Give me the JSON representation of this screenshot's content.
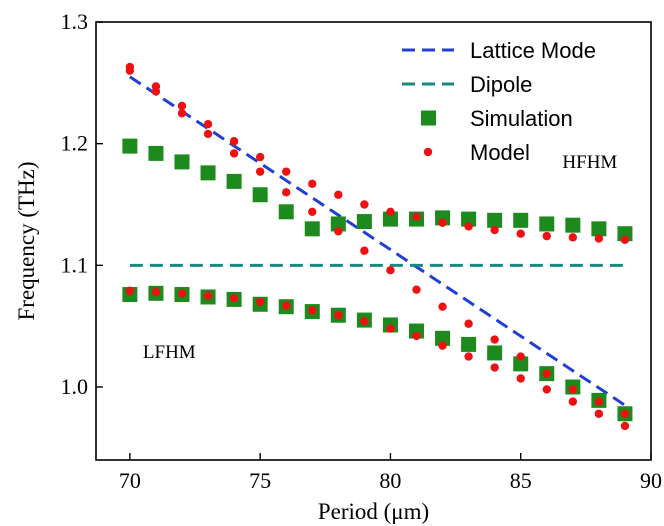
{
  "chart_data": {
    "type": "scatter",
    "xlabel": "Period (μm)",
    "ylabel": "Frequency (THz)",
    "xlim": [
      68.7,
      90
    ],
    "ylim": [
      0.94,
      1.3
    ],
    "xticks": [
      70,
      75,
      80,
      85,
      90
    ],
    "yticks": [
      1.0,
      1.1,
      1.2,
      1.3
    ],
    "xtick_labels": [
      "70",
      "75",
      "80",
      "85",
      "90"
    ],
    "ytick_labels": [
      "1.0",
      "1.1",
      "1.2",
      "1.3"
    ],
    "grid": false,
    "legend_position": "top-right",
    "series": [
      {
        "name": "Lattice Mode",
        "kind": "line",
        "style": "dashed",
        "color": "#1f3fd6",
        "x": [
          70,
          89
        ],
        "y": [
          1.255,
          0.985
        ]
      },
      {
        "name": "Dipole",
        "kind": "line",
        "style": "dashed",
        "color": "#1a8a80",
        "x": [
          70,
          89
        ],
        "y": [
          1.1,
          1.1
        ]
      },
      {
        "name": "Simulation",
        "kind": "scatter",
        "marker": "square",
        "color": "#1d8a1d",
        "x": [
          70,
          71,
          72,
          73,
          74,
          75,
          76,
          77,
          78,
          79,
          80,
          81,
          82,
          83,
          84,
          85,
          86,
          87,
          88,
          89,
          70,
          71,
          72,
          73,
          74,
          75,
          76,
          77,
          78,
          79,
          80,
          81,
          82,
          83,
          84,
          85,
          86,
          87,
          88,
          89
        ],
        "y": [
          1.198,
          1.192,
          1.185,
          1.176,
          1.169,
          1.158,
          1.144,
          1.13,
          1.134,
          1.136,
          1.138,
          1.138,
          1.139,
          1.138,
          1.137,
          1.137,
          1.134,
          1.133,
          1.13,
          1.126,
          1.076,
          1.077,
          1.076,
          1.074,
          1.072,
          1.068,
          1.066,
          1.062,
          1.059,
          1.055,
          1.051,
          1.046,
          1.04,
          1.035,
          1.028,
          1.019,
          1.011,
          1.0,
          0.989,
          0.978
        ]
      },
      {
        "name": "Model",
        "kind": "scatter",
        "marker": "circle",
        "color": "#ee1111",
        "x": [
          70,
          70,
          71,
          71,
          72,
          72,
          73,
          73,
          74,
          74,
          75,
          75,
          76,
          76,
          77,
          77,
          78,
          78,
          79,
          79,
          80,
          80,
          81,
          81,
          82,
          82,
          83,
          83,
          84,
          84,
          85,
          85,
          86,
          86,
          87,
          87,
          88,
          88,
          89,
          89
        ],
        "y": [
          1.263,
          1.26,
          1.247,
          1.243,
          1.231,
          1.225,
          1.216,
          1.208,
          1.202,
          1.192,
          1.189,
          1.177,
          1.177,
          1.16,
          1.167,
          1.144,
          1.158,
          1.128,
          1.15,
          1.112,
          1.144,
          1.096,
          1.14,
          1.08,
          1.135,
          1.066,
          1.132,
          1.052,
          1.129,
          1.039,
          1.126,
          1.025,
          1.124,
          1.011,
          1.123,
          0.998,
          1.122,
          0.988,
          1.121,
          0.978
        ]
      },
      {
        "name": "",
        "kind": "scatter",
        "marker": "circle",
        "color": "#ee1111",
        "x": [
          70,
          71,
          72,
          73,
          74,
          75,
          76,
          77,
          78,
          79,
          80,
          81,
          82,
          83,
          84,
          85,
          86,
          87,
          88,
          89
        ],
        "y": [
          1.079,
          1.078,
          1.077,
          1.075,
          1.073,
          1.07,
          1.067,
          1.063,
          1.059,
          1.054,
          1.048,
          1.042,
          1.034,
          1.025,
          1.016,
          1.007,
          0.998,
          0.988,
          0.978,
          0.968
        ]
      }
    ],
    "annotations": [
      {
        "text": "HFHM",
        "x": 86.6,
        "y": 1.18
      },
      {
        "text": "LFHM",
        "x": 70.5,
        "y": 1.024
      }
    ]
  }
}
